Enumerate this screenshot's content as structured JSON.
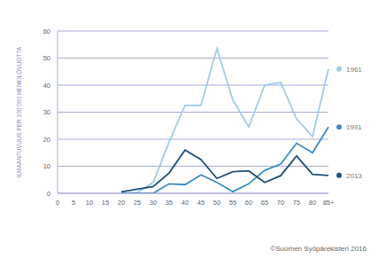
{
  "chart_data": {
    "type": "line",
    "y_label": "ILMAANTUVUUS PER 100 000 HENKILÖVUOTTA",
    "source": "©Suomen Syöpärekisteri 2016",
    "categories": [
      "0",
      "5",
      "10",
      "15",
      "20",
      "25",
      "30",
      "35",
      "40",
      "45",
      "50",
      "55",
      "60",
      "65",
      "70",
      "75",
      "80",
      "85+"
    ],
    "series": [
      {
        "name": "1961",
        "color": "#9fcbea",
        "values": [
          null,
          null,
          null,
          null,
          0,
          0.3,
          4,
          19,
          32.5,
          32.5,
          53.5,
          34.5,
          24.5,
          40,
          41,
          27.5,
          21,
          46
        ]
      },
      {
        "name": "1991",
        "color": "#3a8cc6",
        "values": [
          null,
          null,
          null,
          null,
          0,
          0,
          0,
          3.5,
          3.2,
          6.8,
          4,
          0.6,
          3.5,
          8.5,
          10.8,
          18.5,
          15,
          24.5
        ]
      },
      {
        "name": "2013",
        "color": "#1d4f7a",
        "values": [
          null,
          null,
          null,
          null,
          0.5,
          1.5,
          2.5,
          7.5,
          16,
          12.5,
          5.5,
          8,
          8.3,
          4,
          6.5,
          13.8,
          7,
          6.6
        ]
      }
    ],
    "ylim": [
      0,
      60
    ],
    "yticks": [
      0,
      10,
      20,
      30,
      40,
      50,
      60
    ],
    "grid": true,
    "legend": "right"
  }
}
